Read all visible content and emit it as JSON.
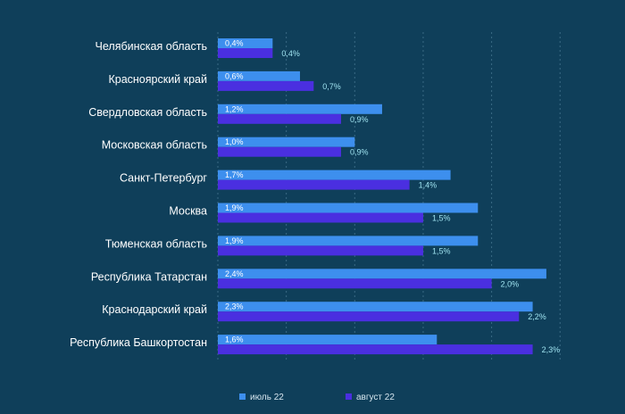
{
  "chart_data": {
    "type": "bar",
    "orientation": "horizontal",
    "title": "",
    "xlabel": "",
    "ylabel": "",
    "categories": [
      "Челябинская область",
      "Красноярский край",
      "Свердловская область",
      "Московская область",
      "Санкт-Петербург",
      "Москва",
      "Тюменская область",
      "Республика Татарстан",
      "Краснодарский край",
      "Республика Башкортостан"
    ],
    "series": [
      {
        "name": "июль 22",
        "color": "#3d8fee",
        "values": [
          0.4,
          0.6,
          1.2,
          1.0,
          1.7,
          1.9,
          1.9,
          2.4,
          2.3,
          1.6
        ],
        "labels": [
          "0,4%",
          "0,6%",
          "1,2%",
          "1,0%",
          "1,7%",
          "1,9%",
          "1,9%",
          "2,4%",
          "2,3%",
          "1,6%"
        ]
      },
      {
        "name": "август 22",
        "color": "#4a2fe0",
        "values": [
          0.4,
          0.7,
          0.9,
          0.9,
          1.4,
          1.5,
          1.5,
          2.0,
          2.2,
          2.3
        ],
        "labels": [
          "0,4%",
          "0,7%",
          "0,9%",
          "0,9%",
          "1,4%",
          "1,5%",
          "1,5%",
          "2,0%",
          "2,2%",
          "2,3%"
        ]
      }
    ],
    "xlim": [
      0,
      2.5
    ],
    "grid": true,
    "legend_position": "bottom"
  }
}
